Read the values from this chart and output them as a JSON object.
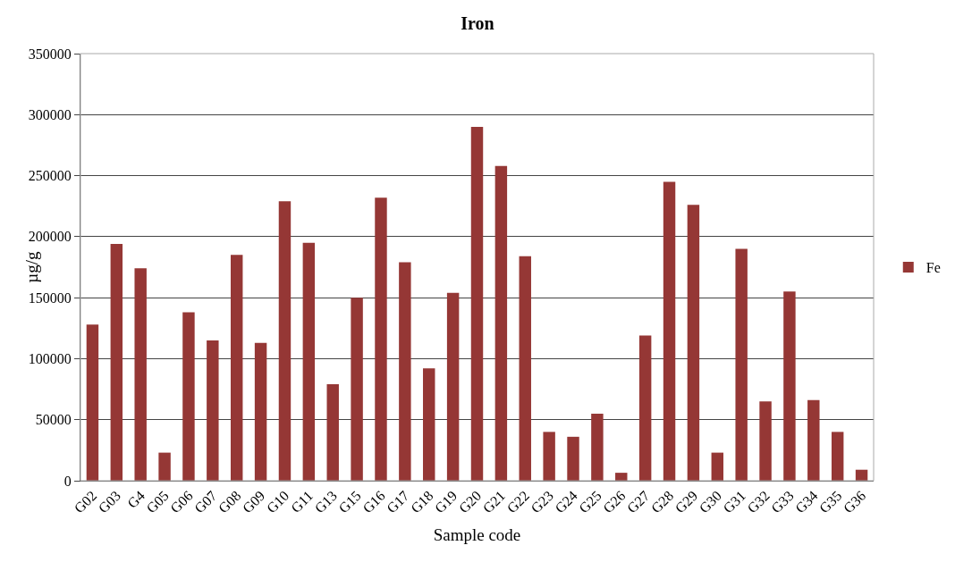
{
  "chart_data": {
    "type": "bar",
    "title": "Iron",
    "xlabel": "Sample code",
    "ylabel": "µg/g",
    "categories": [
      "G02",
      "G03",
      "G4",
      "G05",
      "G06",
      "G07",
      "G08",
      "G09",
      "G10",
      "G11",
      "G13",
      "G15",
      "G16",
      "G17",
      "G18",
      "G19",
      "G20",
      "G21",
      "G22",
      "G23",
      "G24",
      "G25",
      "G26",
      "G27",
      "G28",
      "G29",
      "G30",
      "G31",
      "G32",
      "G33",
      "G34",
      "G35",
      "G36"
    ],
    "series": [
      {
        "name": "Fe",
        "color": "#953735",
        "values": [
          128000,
          194000,
          174000,
          23000,
          138000,
          115000,
          185000,
          113000,
          229000,
          195000,
          79000,
          150000,
          232000,
          179000,
          92000,
          154000,
          290000,
          258000,
          184000,
          40000,
          36000,
          55000,
          6500,
          119000,
          245000,
          226000,
          23000,
          190000,
          65000,
          155000,
          66000,
          40000,
          9000
        ]
      }
    ],
    "ylim": [
      0,
      350000
    ],
    "yticks": [
      0,
      50000,
      100000,
      150000,
      200000,
      250000,
      300000,
      350000
    ],
    "grid": "y",
    "legend": "right"
  }
}
